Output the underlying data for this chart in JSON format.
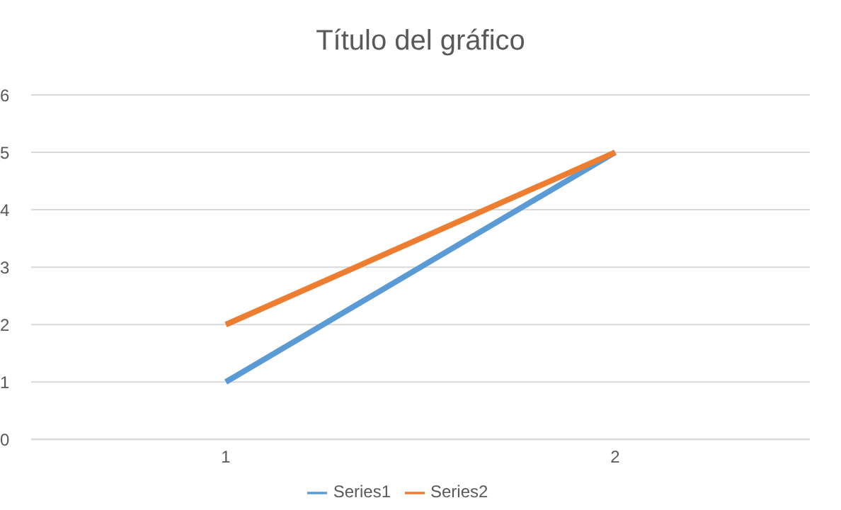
{
  "chart_data": {
    "type": "line",
    "title": "Título del gráfico",
    "categories": [
      "1",
      "2"
    ],
    "series": [
      {
        "name": "Series1",
        "color": "#5b9bd5",
        "values": [
          1,
          5
        ]
      },
      {
        "name": "Series2",
        "color": "#ed7d31",
        "values": [
          2,
          5
        ]
      }
    ],
    "ylim": [
      0,
      6
    ],
    "yticks": [
      0,
      1,
      2,
      3,
      4,
      5,
      6
    ],
    "grid": "y",
    "legend": "bottom",
    "marker": "none",
    "line_style": "solid"
  }
}
